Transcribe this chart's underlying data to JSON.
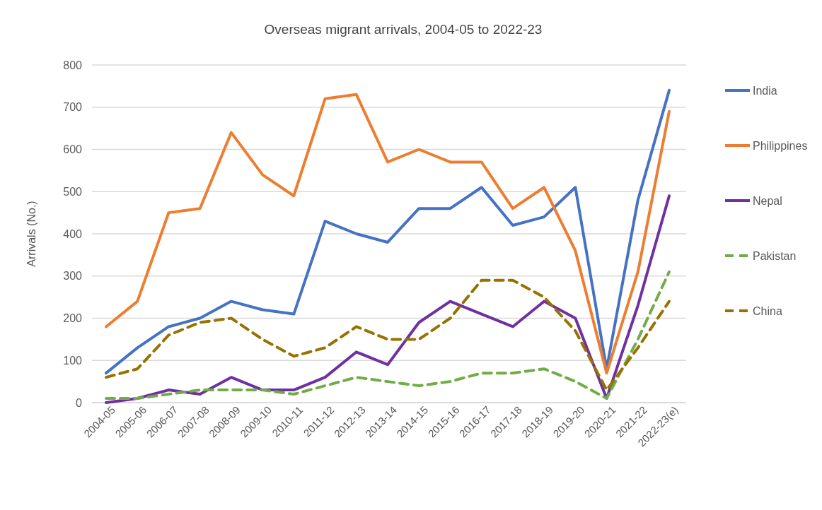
{
  "chart_data": {
    "type": "line",
    "title": "Overseas migrant arrivals, 2004-05 to 2022-23",
    "ylabel": "Arrivals (No.)",
    "categories": [
      "2004-05",
      "2005-06",
      "2006-07",
      "2007-08",
      "2008-09",
      "2009-10",
      "2010-11",
      "2011-12",
      "2012-13",
      "2013-14",
      "2014-15",
      "2015-16",
      "2016-17",
      "2017-18",
      "2018-19",
      "2019-20",
      "2020-21",
      "2021-22",
      "2022-23(e)"
    ],
    "series": [
      {
        "name": "India",
        "color": "#4472c4",
        "line_style": "solid",
        "values": [
          70,
          130,
          180,
          200,
          240,
          220,
          210,
          430,
          400,
          380,
          460,
          460,
          510,
          420,
          440,
          510,
          80,
          480,
          740
        ]
      },
      {
        "name": "Philippines",
        "color": "#ed7d31",
        "line_style": "solid",
        "values": [
          180,
          240,
          450,
          460,
          640,
          540,
          490,
          720,
          730,
          570,
          600,
          570,
          570,
          460,
          510,
          360,
          70,
          310,
          690
        ]
      },
      {
        "name": "Nepal",
        "color": "#7030a0",
        "line_style": "solid",
        "values": [
          0,
          10,
          30,
          20,
          60,
          30,
          30,
          60,
          120,
          90,
          190,
          240,
          210,
          180,
          240,
          200,
          10,
          230,
          490
        ]
      },
      {
        "name": "Pakistan",
        "color": "#70ad47",
        "line_style": "dashed",
        "values": [
          10,
          10,
          20,
          30,
          30,
          30,
          20,
          40,
          60,
          50,
          40,
          50,
          70,
          70,
          80,
          50,
          10,
          150,
          310
        ]
      },
      {
        "name": "China",
        "color": "#977200",
        "line_style": "dashed",
        "values": [
          60,
          80,
          160,
          190,
          200,
          150,
          110,
          130,
          180,
          150,
          150,
          200,
          290,
          290,
          250,
          170,
          30,
          130,
          240
        ]
      }
    ],
    "ylim": [
      0,
      800
    ],
    "yticks": [
      0,
      100,
      200,
      300,
      400,
      500,
      600,
      700,
      800
    ],
    "grid": "y",
    "legend": "right",
    "marker": "none"
  }
}
